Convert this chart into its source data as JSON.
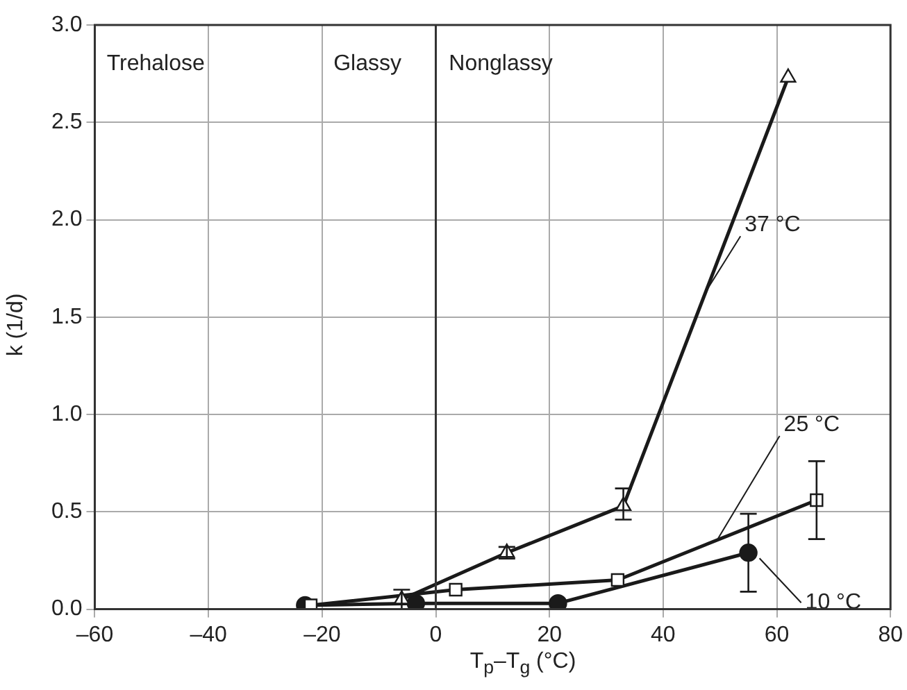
{
  "chart_data": {
    "type": "line",
    "xlabel": "T$_{p}$–T$_{g}$ (°C)",
    "ylabel": "k (1/d)",
    "xlim": [
      -60,
      80
    ],
    "xticks": [
      {
        "value": -60,
        "label": "–60"
      },
      {
        "value": -40,
        "label": "–40"
      },
      {
        "value": -20,
        "label": "–20"
      },
      0,
      20,
      40,
      60,
      80
    ],
    "ylim": [
      0,
      3
    ],
    "yticks": [
      {
        "value": 0,
        "label": "0.0"
      },
      {
        "value": 0.5,
        "label": "0.5"
      },
      {
        "value": 1,
        "label": "1.0"
      },
      {
        "value": 1.5,
        "label": "1.5"
      },
      {
        "value": 2,
        "label": "2.0"
      },
      {
        "value": 2.5,
        "label": "2.5"
      },
      {
        "value": 3,
        "label": "3.0"
      }
    ],
    "grid": true,
    "legend": false,
    "line_style": "solid",
    "series": [
      {
        "name": "37 °C",
        "color": "#1a1a1a",
        "marker": "triangle",
        "x": [
          -6,
          12.5,
          33,
          62
        ],
        "values": [
          0.05,
          0.29,
          0.53,
          2.73
        ],
        "errors": [
          0.05,
          0.03,
          [
            0.46,
            0.62
          ],
          null
        ]
      },
      {
        "name": "25 °C",
        "color": "#1a1a1a",
        "marker": "square",
        "x": [
          -22,
          3.5,
          32,
          67
        ],
        "values": [
          0.02,
          0.1,
          0.15,
          0.56
        ],
        "errors": [
          null,
          null,
          null,
          [
            0.36,
            0.76
          ]
        ]
      },
      {
        "name": "10 °C",
        "color": "#1a1a1a",
        "marker": "circle",
        "x": [
          -23,
          -3.5,
          21.5,
          55
        ],
        "values": [
          0.02,
          0.03,
          0.03,
          0.29
        ],
        "errors": [
          null,
          null,
          null,
          [
            0.09,
            0.49
          ]
        ]
      }
    ],
    "ref_lines": [
      {
        "axis": "x",
        "value": 0,
        "color": "#333333"
      }
    ],
    "annotations": [
      "Trehalose",
      "Glassy",
      "Nonglassy"
    ]
  }
}
